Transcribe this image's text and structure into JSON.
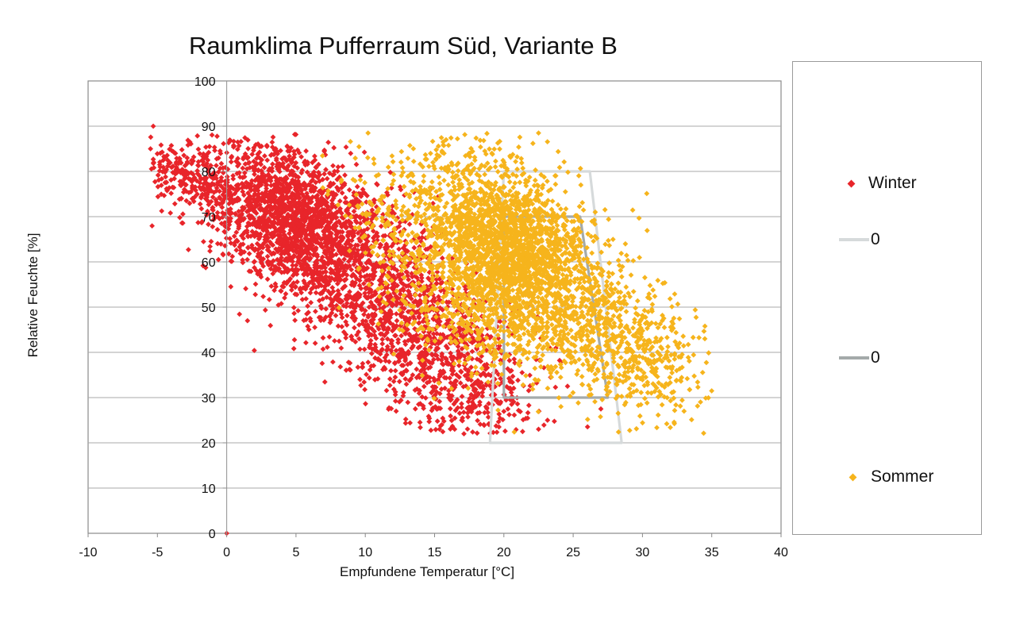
{
  "chart_data": {
    "type": "scatter",
    "title": "Raumklima Pufferraum Süd, Variante B",
    "xlabel": "Empfundene Temperatur [°C]",
    "ylabel": "Relative Feuchte  [%]",
    "xlim": [
      -10,
      40
    ],
    "ylim": [
      0,
      100
    ],
    "x_ticks": [
      -10,
      -5,
      0,
      5,
      10,
      15,
      20,
      25,
      30,
      35,
      40
    ],
    "y_ticks": [
      0,
      10,
      20,
      30,
      40,
      50,
      60,
      70,
      80,
      90,
      100
    ],
    "grid": "horizontal",
    "legend_position": "right",
    "series": [
      {
        "name": "Winter",
        "kind": "points",
        "color": "#e8252a",
        "clouds": [
          {
            "n": 1600,
            "cx": 4.5,
            "cy": 70,
            "sx": 3.2,
            "sy": 7.5,
            "slope": -1.1
          },
          {
            "n": 1100,
            "cx": 10,
            "cy": 56,
            "sx": 4.2,
            "sy": 10,
            "slope": -1.6
          },
          {
            "n": 700,
            "cx": 16,
            "cy": 38,
            "sx": 3.2,
            "sy": 9,
            "slope": -1.5
          },
          {
            "n": 200,
            "cx": -3,
            "cy": 79,
            "sx": 2.0,
            "sy": 4,
            "slope": -1.0
          }
        ],
        "points": [
          [
            -5.3,
            90
          ],
          [
            -5.5,
            85
          ],
          [
            0.3,
            54.5
          ],
          [
            1.5,
            47
          ],
          [
            0,
            0
          ],
          [
            -2.7,
            86.5
          ],
          [
            22.5,
            23
          ],
          [
            27,
            27.5
          ]
        ]
      },
      {
        "name": "0",
        "kind": "polygon",
        "color": "#d6dadb",
        "points": [
          [
            19,
            20
          ],
          [
            20,
            80
          ],
          [
            26.2,
            80
          ],
          [
            28.5,
            20
          ]
        ]
      },
      {
        "name": "0",
        "kind": "polygon",
        "color": "#a4aaaa",
        "points": [
          [
            20,
            30
          ],
          [
            20,
            70
          ],
          [
            25.5,
            70
          ],
          [
            27.5,
            30
          ]
        ]
      },
      {
        "name": "Sommer",
        "kind": "points",
        "color": "#f6b41c",
        "clouds": [
          {
            "n": 1500,
            "cx": 20.5,
            "cy": 64,
            "sx": 2.6,
            "sy": 8.5,
            "slope": -0.8
          },
          {
            "n": 1100,
            "cx": 17,
            "cy": 60,
            "sx": 3.8,
            "sy": 11,
            "slope": -1.4
          },
          {
            "n": 800,
            "cx": 25,
            "cy": 50,
            "sx": 3.8,
            "sy": 10,
            "slope": -1.5
          },
          {
            "n": 250,
            "cx": 30,
            "cy": 40,
            "sx": 2.3,
            "sy": 6,
            "slope": -1.2
          }
        ],
        "points": [
          [
            10.2,
            88.5
          ],
          [
            22.5,
            88.5
          ],
          [
            35,
            31.5
          ],
          [
            34.5,
            43
          ],
          [
            33,
            27
          ]
        ]
      }
    ]
  }
}
